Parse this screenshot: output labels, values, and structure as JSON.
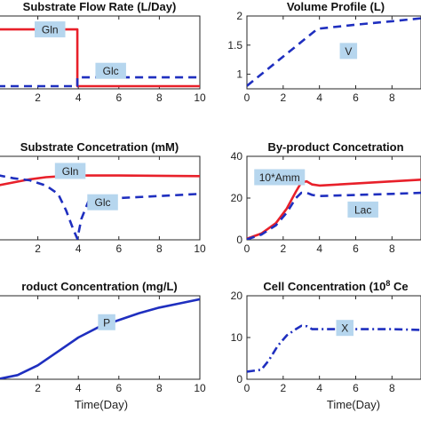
{
  "chart_data": [
    {
      "type": "line",
      "title": "Substrate Flow Rate (L/Day)",
      "xlabel": "",
      "ylabel": "",
      "xlim": [
        0,
        10
      ],
      "x_ticks": [
        "2",
        "4",
        "6",
        "8",
        "10"
      ],
      "y_ticks": [],
      "series": [
        {
          "name": "Gln",
          "color": "#e8202a",
          "style": "solid",
          "points": [
            [
              0,
              1.5
            ],
            [
              3.95,
              1.5
            ],
            [
              3.95,
              0.02
            ],
            [
              10,
              0.02
            ]
          ]
        },
        {
          "name": "Glc",
          "color": "#1f2fbf",
          "style": "dashed",
          "points": [
            [
              0,
              0.02
            ],
            [
              3.95,
              0.02
            ],
            [
              3.95,
              0.25
            ],
            [
              10,
              0.25
            ]
          ]
        }
      ],
      "annotations": [
        "Gln",
        "Glc"
      ]
    },
    {
      "type": "line",
      "title": "Volume Profile (L)",
      "xlabel": "",
      "ylabel": "",
      "xlim": [
        0,
        9.6
      ],
      "ylim": [
        0.75,
        2.0
      ],
      "x_ticks": [
        "0",
        "2",
        "4",
        "6",
        "8"
      ],
      "y_ticks": [
        "1",
        "1.5",
        "2"
      ],
      "series": [
        {
          "name": "V",
          "color": "#1f2fbf",
          "style": "dashed",
          "points": [
            [
              0,
              0.8
            ],
            [
              3.9,
              1.78
            ],
            [
              6,
              1.85
            ],
            [
              8,
              1.91
            ],
            [
              9.6,
              1.96
            ]
          ]
        }
      ],
      "annotations": [
        "V"
      ]
    },
    {
      "type": "line",
      "title": "Substrate Concetration (mM)",
      "xlabel": "",
      "ylabel": "",
      "xlim": [
        0,
        10
      ],
      "x_ticks": [
        "2",
        "4",
        "6",
        "8",
        "10"
      ],
      "y_ticks": [],
      "series": [
        {
          "name": "Gln",
          "color": "#e8202a",
          "style": "solid",
          "points": [
            [
              0,
              2.6
            ],
            [
              0.8,
              2.75
            ],
            [
              1.6,
              2.9
            ],
            [
              2.4,
              3.0
            ],
            [
              3.2,
              3.05
            ],
            [
              4,
              3.08
            ],
            [
              6,
              3.08
            ],
            [
              8,
              3.07
            ],
            [
              10,
              3.05
            ]
          ]
        },
        {
          "name": "Glc",
          "color": "#1f2fbf",
          "style": "dashed",
          "points": [
            [
              0,
              3.1
            ],
            [
              0.8,
              2.95
            ],
            [
              1.6,
              2.85
            ],
            [
              2.4,
              2.6
            ],
            [
              3.0,
              2.2
            ],
            [
              3.4,
              1.4
            ],
            [
              3.75,
              0.5
            ],
            [
              3.95,
              0.05
            ],
            [
              4.15,
              1.0
            ],
            [
              4.5,
              1.85
            ],
            [
              5,
              1.95
            ],
            [
              6,
              2.0
            ],
            [
              8,
              2.1
            ],
            [
              10,
              2.2
            ]
          ]
        }
      ],
      "annotations": [
        "Gln",
        "Glc"
      ]
    },
    {
      "type": "line",
      "title": "By-product Concetration",
      "xlabel": "",
      "ylabel": "",
      "xlim": [
        0,
        9.6
      ],
      "ylim": [
        0,
        40
      ],
      "x_ticks": [
        "0",
        "2",
        "4",
        "6",
        "8"
      ],
      "y_ticks": [
        "0",
        "20",
        "40"
      ],
      "series": [
        {
          "name": "10*Amm",
          "color": "#e8202a",
          "style": "solid",
          "points": [
            [
              0,
              0.5
            ],
            [
              0.8,
              3
            ],
            [
              1.6,
              8
            ],
            [
              2.2,
              15
            ],
            [
              2.7,
              23
            ],
            [
              3.0,
              27.5
            ],
            [
              3.3,
              28
            ],
            [
              3.6,
              26.5
            ],
            [
              4.0,
              26
            ],
            [
              6,
              27
            ],
            [
              8,
              28
            ],
            [
              9.6,
              28.8
            ]
          ]
        },
        {
          "name": "Lac",
          "color": "#1f2fbf",
          "style": "dashed",
          "points": [
            [
              0,
              0.2
            ],
            [
              0.8,
              2.5
            ],
            [
              1.6,
              7
            ],
            [
              2.2,
              13
            ],
            [
              2.7,
              20
            ],
            [
              3.0,
              22.5
            ],
            [
              3.3,
              22.5
            ],
            [
              3.6,
              21.5
            ],
            [
              4.0,
              21
            ],
            [
              6,
              21.5
            ],
            [
              8,
              22
            ],
            [
              9.6,
              22.5
            ]
          ]
        }
      ],
      "annotations": [
        "10*Amm",
        "Lac"
      ]
    },
    {
      "type": "line",
      "title": "roduct Concentration (mg/L)",
      "xlabel": "Time(Day)",
      "ylabel": "",
      "xlim": [
        0,
        10
      ],
      "x_ticks": [
        "2",
        "4",
        "6",
        "8",
        "10"
      ],
      "y_ticks": [],
      "series": [
        {
          "name": "P",
          "color": "#1f2fbf",
          "style": "solid",
          "points": [
            [
              0,
              0.0
            ],
            [
              1,
              0.06
            ],
            [
              2,
              0.2
            ],
            [
              3,
              0.4
            ],
            [
              4,
              0.6
            ],
            [
              5,
              0.75
            ],
            [
              6,
              0.85
            ],
            [
              7,
              0.95
            ],
            [
              8,
              1.03
            ],
            [
              9,
              1.09
            ],
            [
              10,
              1.15
            ]
          ]
        }
      ],
      "annotations": [
        "P"
      ]
    },
    {
      "type": "line",
      "title": "Cell Concentration (10",
      "title_superscript": "8",
      "title_suffix": " Ce",
      "xlabel": "Time(Day)",
      "ylabel": "",
      "xlim": [
        0,
        9.6
      ],
      "ylim": [
        0,
        20
      ],
      "x_ticks": [
        "0",
        "2",
        "4",
        "6",
        "8"
      ],
      "y_ticks": [
        "0",
        "10",
        "20"
      ],
      "series": [
        {
          "name": "X",
          "color": "#1f2fbf",
          "style": "dashdot",
          "points": [
            [
              0,
              1.8
            ],
            [
              0.8,
              2.3
            ],
            [
              1.2,
              4.5
            ],
            [
              1.7,
              8
            ],
            [
              2.2,
              10.5
            ],
            [
              2.7,
              12
            ],
            [
              3.0,
              12.8
            ],
            [
              3.3,
              12.7
            ],
            [
              3.6,
              12
            ],
            [
              4.0,
              12
            ],
            [
              6,
              12
            ],
            [
              8,
              12
            ],
            [
              9.6,
              11.8
            ]
          ]
        }
      ],
      "annotations": [
        "X"
      ]
    }
  ]
}
